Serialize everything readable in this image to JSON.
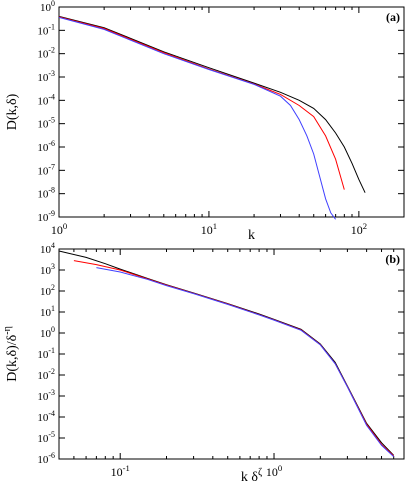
{
  "chart_data": [
    {
      "panel": "(a)",
      "type": "line",
      "xscale": "log",
      "yscale": "log",
      "xlabel": "k",
      "ylabel": "D(k,δ)",
      "xlim": [
        1,
        200
      ],
      "ylim": [
        1e-09,
        1
      ],
      "xticks": [
        {
          "value": 1,
          "base": "10",
          "exp": "0"
        },
        {
          "value": 10,
          "base": "10",
          "exp": "1"
        },
        {
          "value": 100,
          "base": "10",
          "exp": "2"
        }
      ],
      "yticks": [
        {
          "value": 1,
          "base": "10",
          "exp": "0"
        },
        {
          "value": 0.1,
          "base": "10",
          "exp": "-1"
        },
        {
          "value": 0.01,
          "base": "10",
          "exp": "-2"
        },
        {
          "value": 0.001,
          "base": "10",
          "exp": "-3"
        },
        {
          "value": 0.0001,
          "base": "10",
          "exp": "-4"
        },
        {
          "value": 1e-05,
          "base": "10",
          "exp": "-5"
        },
        {
          "value": 1e-06,
          "base": "10",
          "exp": "-6"
        },
        {
          "value": 1e-07,
          "base": "10",
          "exp": "-7"
        },
        {
          "value": 1e-08,
          "base": "10",
          "exp": "-8"
        },
        {
          "value": 1e-09,
          "base": "10",
          "exp": "-9"
        }
      ],
      "series": [
        {
          "color": "#000000",
          "x": [
            1,
            2,
            5,
            10,
            20,
            30,
            40,
            50,
            60,
            70,
            80,
            90,
            100,
            110
          ],
          "y": [
            0.4,
            0.13,
            0.012,
            0.0025,
            0.00055,
            0.00022,
            0.0001,
            4.5e-05,
            1.5e-05,
            4e-06,
            1e-06,
            2e-07,
            4e-08,
            1.1e-08
          ]
        },
        {
          "color": "#ff0000",
          "x": [
            1,
            2,
            5,
            10,
            20,
            30,
            40,
            50,
            60,
            70,
            80
          ],
          "y": [
            0.38,
            0.12,
            0.011,
            0.0022,
            0.0005,
            0.00018,
            6e-05,
            2e-05,
            3e-06,
            3e-07,
            1.5e-08
          ]
        },
        {
          "color": "#4040ff",
          "x": [
            1,
            2,
            5,
            10,
            20,
            30,
            35,
            40,
            45,
            50,
            55,
            60,
            65,
            70
          ],
          "y": [
            0.36,
            0.11,
            0.01,
            0.0021,
            0.00048,
            0.00015,
            6e-05,
            1.5e-05,
            3e-06,
            5e-07,
            5e-08,
            6e-09,
            1.5e-09,
            8e-10
          ]
        }
      ]
    },
    {
      "panel": "(b)",
      "type": "line",
      "xscale": "log",
      "yscale": "log",
      "xlabel": "k δ",
      "xlabel_sup": "ζ",
      "ylabel": "D(k,δ)/δ",
      "ylabel_sup": "-η",
      "xlim": [
        0.04,
        7
      ],
      "ylim": [
        1e-06,
        10000.0
      ],
      "xticks": [
        {
          "value": 0.1,
          "base": "10",
          "exp": "-1"
        },
        {
          "value": 1,
          "base": "10",
          "exp": "0"
        }
      ],
      "yticks": [
        {
          "value": 10000,
          "base": "10",
          "exp": "4"
        },
        {
          "value": 1000,
          "base": "10",
          "exp": "3"
        },
        {
          "value": 100,
          "base": "10",
          "exp": "2"
        },
        {
          "value": 10,
          "base": "10",
          "exp": "1"
        },
        {
          "value": 1,
          "base": "10",
          "exp": "0"
        },
        {
          "value": 0.1,
          "base": "10",
          "exp": "-1"
        },
        {
          "value": 0.01,
          "base": "10",
          "exp": "-2"
        },
        {
          "value": 0.001,
          "base": "10",
          "exp": "-3"
        },
        {
          "value": 0.0001,
          "base": "10",
          "exp": "-4"
        },
        {
          "value": 1e-05,
          "base": "10",
          "exp": "-5"
        },
        {
          "value": 1e-06,
          "base": "10",
          "exp": "-6"
        }
      ],
      "series": [
        {
          "color": "#000000",
          "x": [
            0.04,
            0.06,
            0.08,
            0.1,
            0.15,
            0.2,
            0.3,
            0.5,
            0.8,
            1,
            1.5,
            2,
            2.5,
            3,
            4,
            5,
            6
          ],
          "y": [
            8000,
            4000,
            2000,
            1100,
            400,
            200,
            80,
            25,
            8,
            4.5,
            1.5,
            0.3,
            0.04,
            0.003,
            5e-05,
            6e-06,
            1.5e-06
          ]
        },
        {
          "color": "#ff0000",
          "x": [
            0.05,
            0.07,
            0.1,
            0.15,
            0.2,
            0.3,
            0.5,
            0.8,
            1,
            1.5,
            2,
            2.5,
            3,
            4,
            5,
            6
          ],
          "y": [
            2800,
            1800,
            1000,
            380,
            190,
            78,
            24,
            7.5,
            4.2,
            1.4,
            0.28,
            0.035,
            0.0028,
            4.5e-05,
            5e-06,
            1.4e-06
          ]
        },
        {
          "color": "#4040ff",
          "x": [
            0.07,
            0.1,
            0.15,
            0.2,
            0.3,
            0.5,
            0.8,
            1,
            1.5,
            2,
            2.5,
            3,
            4,
            5,
            6
          ],
          "y": [
            1300,
            800,
            360,
            180,
            75,
            23,
            7.3,
            4.1,
            1.35,
            0.27,
            0.034,
            0.0027,
            4e-05,
            4.5e-06,
            1.3e-06
          ]
        }
      ]
    }
  ]
}
